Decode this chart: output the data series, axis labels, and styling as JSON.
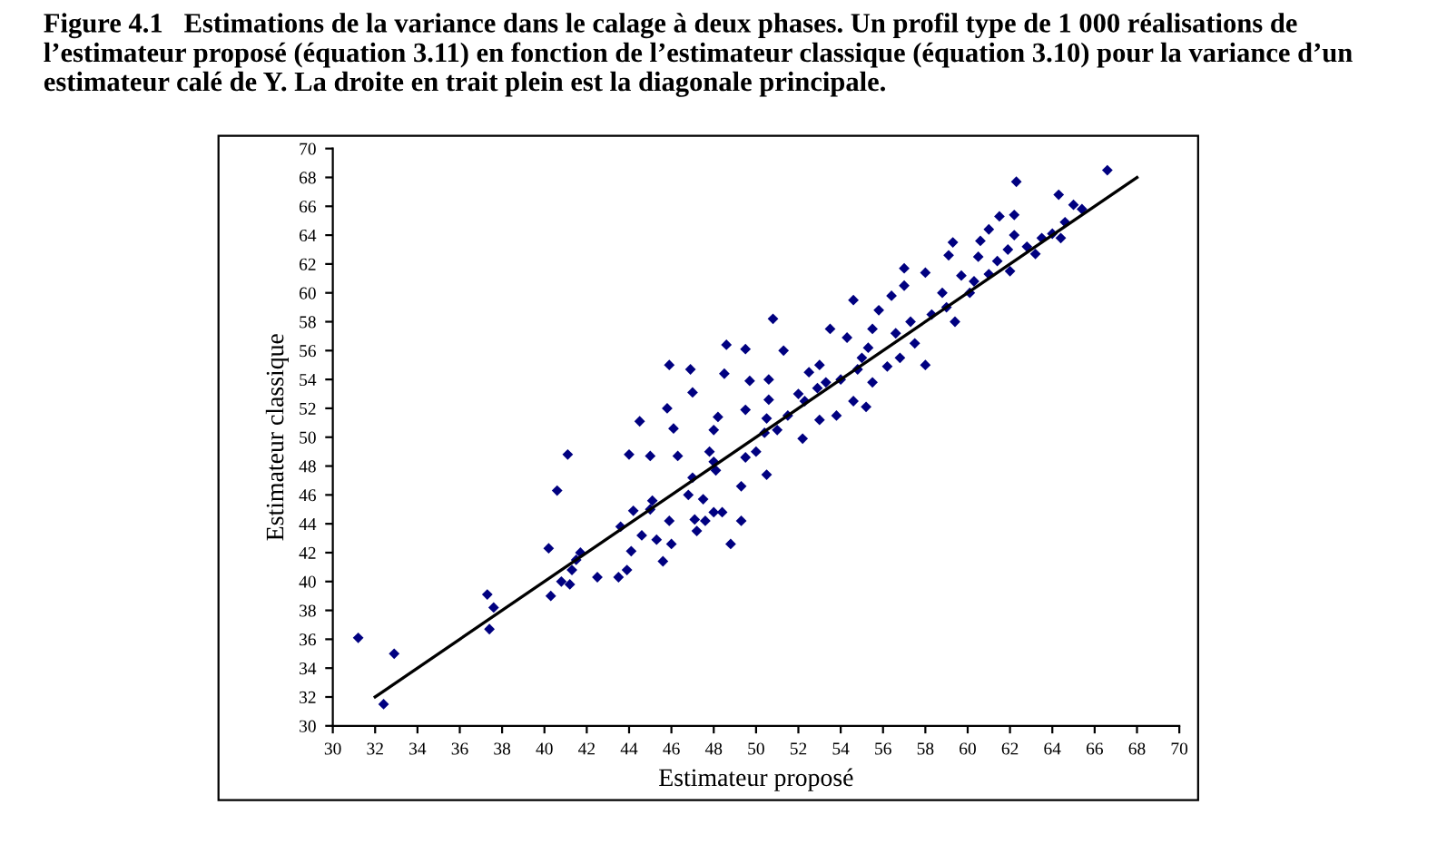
{
  "chart_data": {
    "type": "scatter",
    "title": "Figure 4.1   Estimations de la variance dans le calage à deux phases. Un profil type de 1 000 réalisations de l’estimateur proposé (équation 3.11) en fonction de l’estimateur classique (équation 3.10) pour la variance d’un estimateur calé de Y. La droite en trait plein est la diagonale principale.",
    "xlabel": "Estimateur proposé",
    "ylabel": "Estimateur classique",
    "xlim": [
      30,
      70
    ],
    "ylim": [
      30,
      70
    ],
    "xticks": [
      30,
      32,
      34,
      36,
      38,
      40,
      42,
      44,
      46,
      48,
      50,
      52,
      54,
      56,
      58,
      60,
      62,
      64,
      66,
      68,
      70
    ],
    "yticks": [
      30,
      32,
      34,
      36,
      38,
      40,
      42,
      44,
      46,
      48,
      50,
      52,
      54,
      56,
      58,
      60,
      62,
      64,
      66,
      68,
      70
    ],
    "grid": false,
    "legend": false,
    "marker": "diamond",
    "series": [
      {
        "color": "#000080",
        "x": [
          31.2,
          32.4,
          32.9,
          37.3,
          37.4,
          37.6,
          40.2,
          40.3,
          40.6,
          41.1,
          40.8,
          41.2,
          41.5,
          41.7,
          41.3,
          42.5,
          43.5,
          43.6,
          43.9,
          44.0,
          44.1,
          44.5,
          44.2,
          44.6,
          45.0,
          45.1,
          45.0,
          45.3,
          45.6,
          45.9,
          45.9,
          46.0,
          45.8,
          46.1,
          46.3,
          46.9,
          47.0,
          46.8,
          47.0,
          47.1,
          47.2,
          47.5,
          47.6,
          47.8,
          48.0,
          48.1,
          48.0,
          48.0,
          48.4,
          48.2,
          48.6,
          48.5,
          48.8,
          49.3,
          49.3,
          49.5,
          49.5,
          49.5,
          49.7,
          50.0,
          50.4,
          50.5,
          50.6,
          50.6,
          50.5,
          50.8,
          51.0,
          51.3,
          51.5,
          52.0,
          52.2,
          52.3,
          52.5,
          52.9,
          53.0,
          53.0,
          53.3,
          53.5,
          53.8,
          54.0,
          54.3,
          54.6,
          54.6,
          54.8,
          55.0,
          55.2,
          55.3,
          55.5,
          55.5,
          55.8,
          56.2,
          56.4,
          56.6,
          56.8,
          57.0,
          57.0,
          57.3,
          57.5,
          58.0,
          58.0,
          58.3,
          58.8,
          59.0,
          59.1,
          59.3,
          59.4,
          59.7,
          60.1,
          60.3,
          60.5,
          60.6,
          61.0,
          61.0,
          61.5,
          61.4,
          61.9,
          62.0,
          62.2,
          62.3,
          62.2,
          62.8,
          63.2,
          63.5,
          64.0,
          64.3,
          64.4,
          64.6,
          65.0,
          65.4,
          66.6
        ],
        "values": [
          36.1,
          31.5,
          35.0,
          39.1,
          36.7,
          38.2,
          42.3,
          39.0,
          46.3,
          48.8,
          40.0,
          39.8,
          41.5,
          42.0,
          40.8,
          40.3,
          40.3,
          43.8,
          40.8,
          48.8,
          42.1,
          51.1,
          44.9,
          43.2,
          45.0,
          45.6,
          48.7,
          42.9,
          41.4,
          44.2,
          55.0,
          42.6,
          52.0,
          50.6,
          48.7,
          54.7,
          53.1,
          46.0,
          47.2,
          44.3,
          43.5,
          45.7,
          44.2,
          49.0,
          48.3,
          47.7,
          50.5,
          44.8,
          44.8,
          51.4,
          56.4,
          54.4,
          42.6,
          44.2,
          46.6,
          48.6,
          51.9,
          56.1,
          53.9,
          49.0,
          50.3,
          51.3,
          52.6,
          54.0,
          47.4,
          58.2,
          50.5,
          56.0,
          51.5,
          53.0,
          49.9,
          52.5,
          54.5,
          53.4,
          51.2,
          55.0,
          53.8,
          57.5,
          51.5,
          54.0,
          56.9,
          52.5,
          59.5,
          54.7,
          55.5,
          52.1,
          56.2,
          57.5,
          53.8,
          58.8,
          54.9,
          59.8,
          57.2,
          55.5,
          60.5,
          61.7,
          58.0,
          56.5,
          55.0,
          61.4,
          58.5,
          60.0,
          59.0,
          62.6,
          63.5,
          58.0,
          61.2,
          60.0,
          60.8,
          62.5,
          63.6,
          61.3,
          64.4,
          65.3,
          62.2,
          63.0,
          61.5,
          64.0,
          67.7,
          65.4,
          63.2,
          62.7,
          63.8,
          64.1,
          66.8,
          63.8,
          64.9,
          66.1,
          65.8,
          68.5
        ]
      },
      {
        "type": "line",
        "color": "#000000",
        "marker": "none",
        "line_style": "solid",
        "x": [
          32,
          68
        ],
        "values": [
          32,
          68
        ]
      }
    ]
  }
}
